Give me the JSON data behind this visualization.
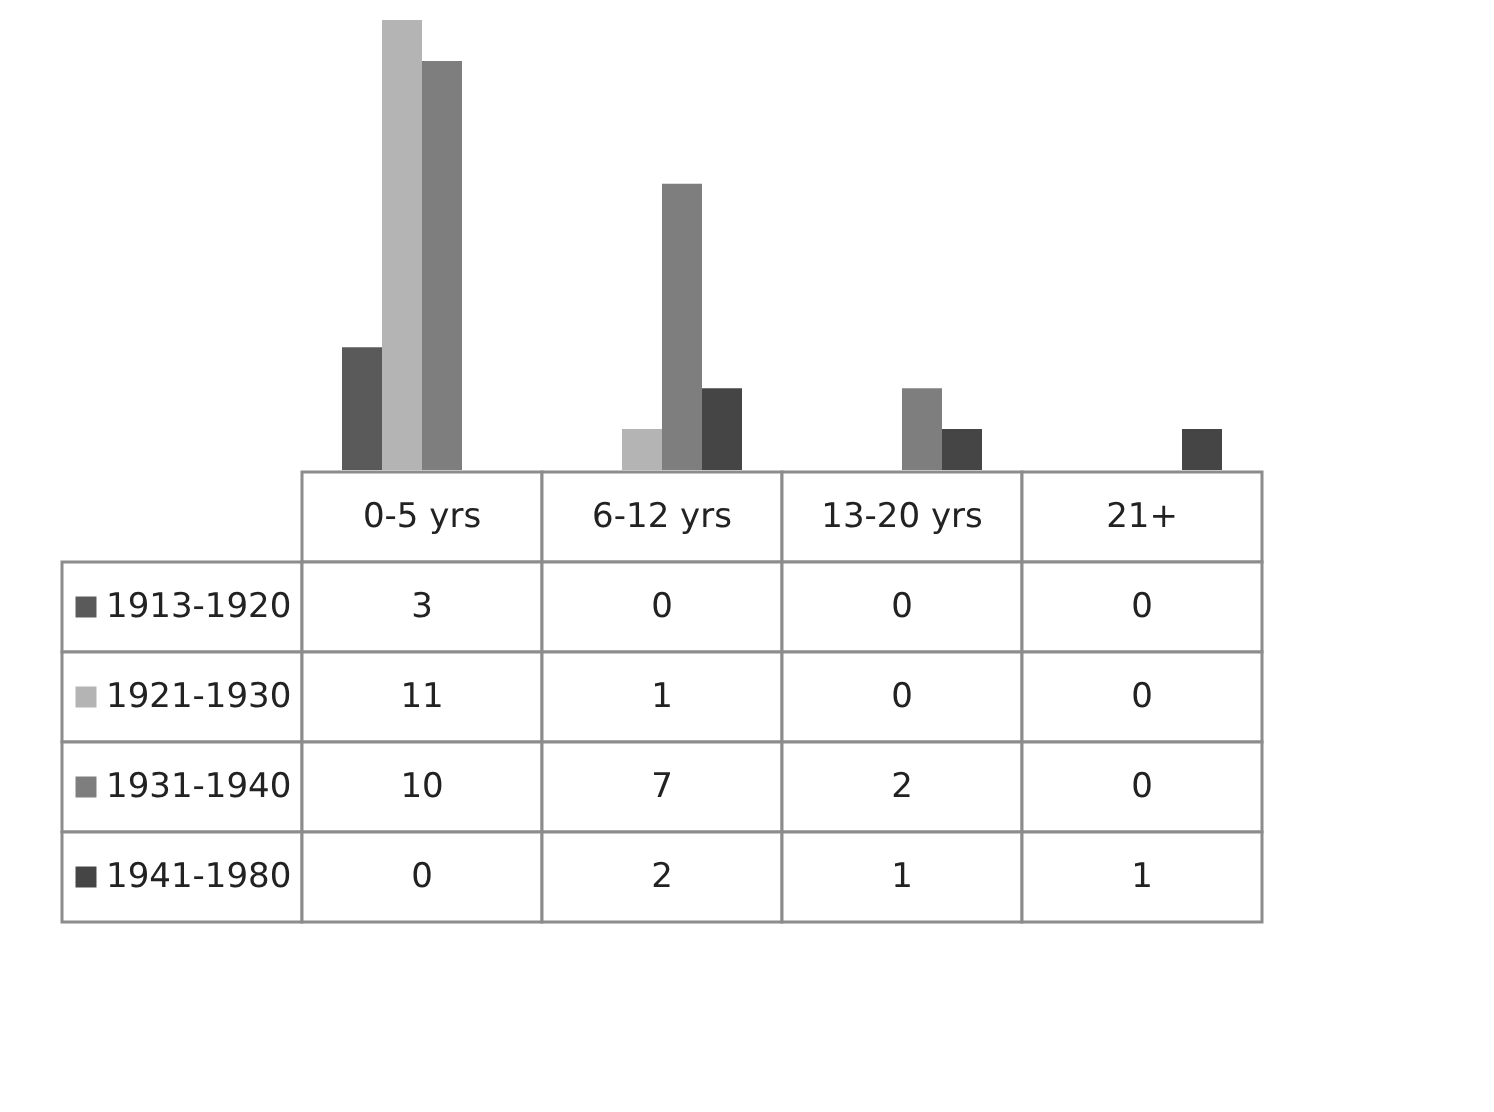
{
  "chart_data": {
    "type": "bar",
    "categories": [
      "0-5 yrs",
      "6-12 yrs",
      "13-20 yrs",
      "21+"
    ],
    "series": [
      {
        "name": "1913-1920",
        "color": "#5a5a5a",
        "values": [
          3,
          0,
          0,
          0
        ]
      },
      {
        "name": "1921-1930",
        "color": "#b4b4b4",
        "values": [
          11,
          1,
          0,
          0
        ]
      },
      {
        "name": "1931-1940",
        "color": "#7e7e7e",
        "values": [
          10,
          7,
          2,
          0
        ]
      },
      {
        "name": "1941-1980",
        "color": "#454545",
        "values": [
          0,
          2,
          1,
          1
        ]
      }
    ],
    "data_labels": true,
    "legend": "bottom"
  }
}
